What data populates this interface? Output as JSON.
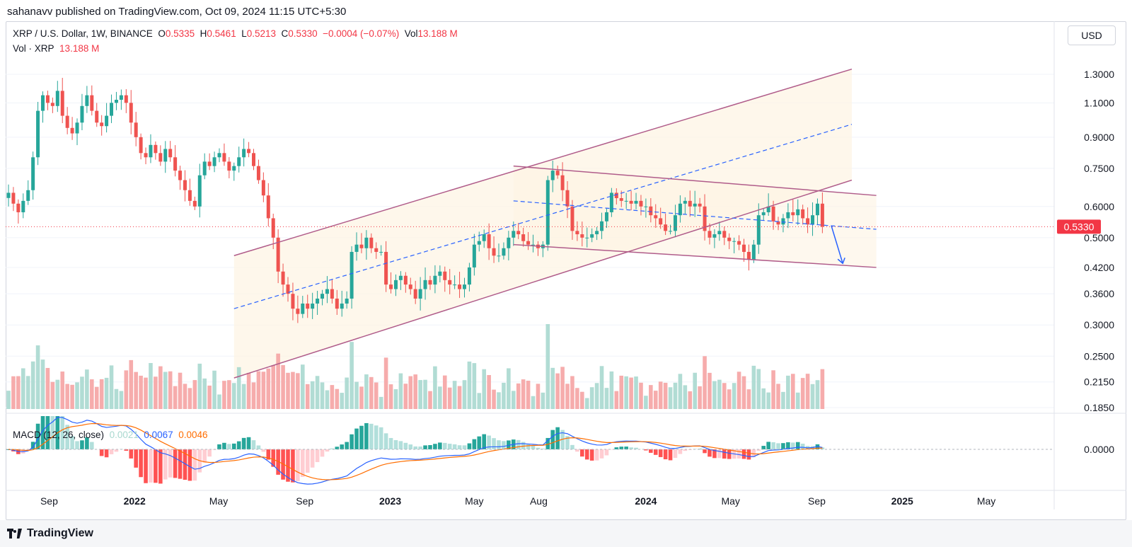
{
  "publisher_line": "sahanavv published on TradingView.com, Oct 09, 2024 11:15 UTC+5:30",
  "legend": {
    "symbol": "XRP / U.S. Dollar, 1W, BINANCE",
    "o_label": "O",
    "o": "0.5335",
    "h_label": "H",
    "h": "0.5461",
    "l_label": "L",
    "l": "0.5213",
    "c_label": "C",
    "c": "0.5330",
    "change": "−0.0004 (−0.07%)",
    "vol_label": "Vol",
    "vol": "13.188 M"
  },
  "volume_legend": {
    "label": "Vol · XRP",
    "value": "13.188 M"
  },
  "macd_legend": {
    "label": "MACD (12, 26, close)",
    "hist": "0.0021",
    "macd": "0.0067",
    "signal": "0.0046"
  },
  "currency_button": "USD",
  "price_tag": "0.5330",
  "footer_logo": "TradingView",
  "colors": {
    "up": "#26a69a",
    "down": "#ef5350",
    "channel": "#b05c8a",
    "midline": "#2962ff",
    "price_line": "#f23645",
    "macd": "#2962ff",
    "signal": "#ff6d00"
  },
  "chart_data": {
    "type": "candlestick",
    "symbol": "XRP / U.S. Dollar",
    "interval": "1W",
    "exchange": "BINANCE",
    "price_scale": "log",
    "y_ticks": [
      "1.3000",
      "1.1000",
      "0.9000",
      "0.7500",
      "0.6000",
      "0.5000",
      "0.4200",
      "0.3600",
      "0.3000",
      "0.2500",
      "0.2150",
      "0.1850"
    ],
    "macd_ticks": [
      "0.0000"
    ],
    "x_ticks": [
      "Sep",
      "2022",
      "May",
      "Sep",
      "2023",
      "May",
      "Aug",
      "2024",
      "May",
      "Sep",
      "2025",
      "May"
    ],
    "x_ticks_bold": [
      false,
      true,
      false,
      false,
      true,
      false,
      false,
      true,
      false,
      false,
      true,
      false
    ],
    "last_price": 0.533,
    "closes": [
      0.65,
      0.61,
      0.58,
      0.62,
      0.66,
      0.8,
      1.05,
      1.15,
      1.1,
      1.08,
      1.18,
      1.02,
      0.95,
      0.92,
      0.98,
      1.08,
      1.15,
      1.05,
      0.98,
      0.96,
      1.02,
      1.1,
      1.12,
      1.15,
      1.1,
      0.98,
      0.9,
      0.82,
      0.8,
      0.86,
      0.82,
      0.78,
      0.84,
      0.8,
      0.74,
      0.7,
      0.66,
      0.62,
      0.6,
      0.72,
      0.78,
      0.76,
      0.8,
      0.82,
      0.78,
      0.74,
      0.76,
      0.8,
      0.84,
      0.82,
      0.76,
      0.7,
      0.64,
      0.56,
      0.5,
      0.41,
      0.38,
      0.36,
      0.33,
      0.32,
      0.34,
      0.33,
      0.34,
      0.35,
      0.36,
      0.37,
      0.35,
      0.33,
      0.34,
      0.35,
      0.46,
      0.48,
      0.47,
      0.5,
      0.47,
      0.46,
      0.46,
      0.38,
      0.37,
      0.39,
      0.4,
      0.38,
      0.37,
      0.35,
      0.37,
      0.39,
      0.38,
      0.4,
      0.41,
      0.39,
      0.38,
      0.38,
      0.37,
      0.38,
      0.42,
      0.48,
      0.49,
      0.51,
      0.47,
      0.45,
      0.45,
      0.47,
      0.5,
      0.52,
      0.51,
      0.49,
      0.48,
      0.48,
      0.47,
      0.48,
      0.7,
      0.74,
      0.72,
      0.66,
      0.6,
      0.52,
      0.51,
      0.5,
      0.5,
      0.51,
      0.52,
      0.55,
      0.58,
      0.65,
      0.63,
      0.62,
      0.62,
      0.61,
      0.62,
      0.6,
      0.6,
      0.57,
      0.56,
      0.54,
      0.52,
      0.52,
      0.57,
      0.61,
      0.62,
      0.6,
      0.61,
      0.6,
      0.52,
      0.5,
      0.51,
      0.52,
      0.5,
      0.49,
      0.49,
      0.48,
      0.46,
      0.44,
      0.48,
      0.57,
      0.58,
      0.6,
      0.55,
      0.54,
      0.56,
      0.58,
      0.57,
      0.59,
      0.56,
      0.54,
      0.57,
      0.61,
      0.533
    ],
    "channel_upper": {
      "start": [
        "2022-05-23",
        0.45
      ],
      "end": [
        "2024-10-21",
        1.34
      ]
    },
    "channel_lower": {
      "start": [
        "2022-05-23",
        0.22
      ],
      "end": [
        "2024-10-21",
        0.7
      ]
    },
    "channel_mid": {
      "start": [
        "2022-05-23",
        0.33
      ],
      "end": [
        "2024-10-21",
        0.97
      ]
    },
    "descending_upper": {
      "start": [
        "2023-06-26",
        0.76
      ],
      "end": [
        "2024-11-25",
        0.64
      ]
    },
    "descending_lower": {
      "start": [
        "2023-06-26",
        0.48
      ],
      "end": [
        "2024-11-25",
        0.42
      ]
    },
    "descending_mid": {
      "start": [
        "2023-06-26",
        0.62
      ],
      "end": [
        "2024-11-25",
        0.525
      ]
    },
    "projection_arrow": {
      "from": 0.535,
      "to": 0.43
    }
  }
}
